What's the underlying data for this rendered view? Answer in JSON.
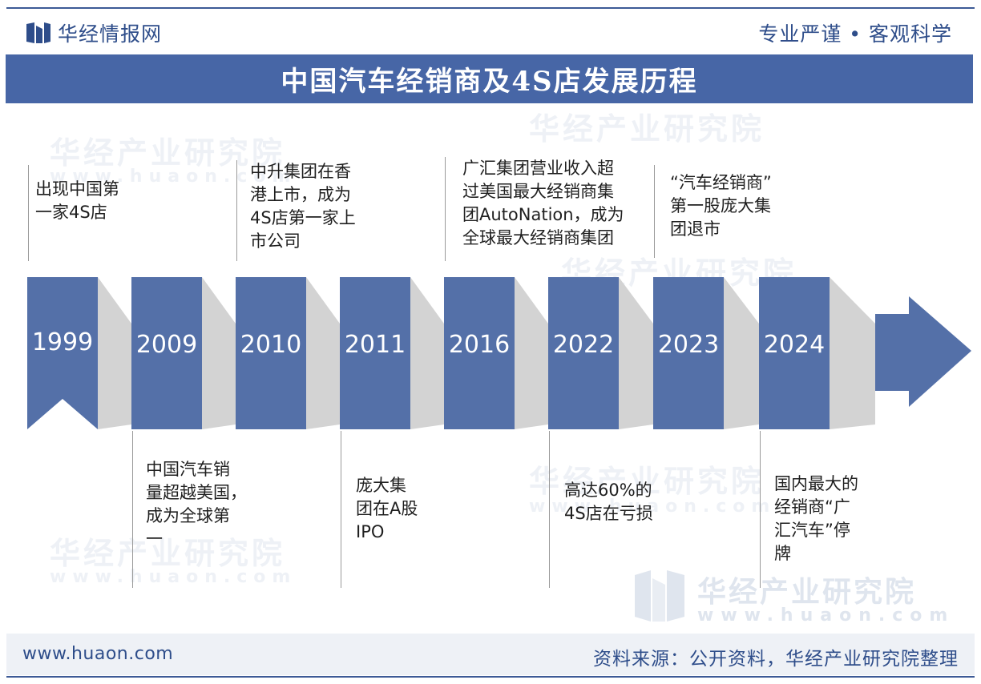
{
  "header": {
    "brand": "华经情报网",
    "slogan": "专业严谨 • 客观科学"
  },
  "title": "中国汽车经销商及4S店发展历程",
  "watermark": {
    "text": "华经产业研究院",
    "url": "www.huaon.com"
  },
  "timeline": [
    {
      "year": "1999",
      "event": "出现中国第\n一家4S店",
      "position": "top"
    },
    {
      "year": "2009",
      "event": "中国汽车销\n量超越美国，\n成为全球第\n一",
      "position": "bottom"
    },
    {
      "year": "2010",
      "event": "中升集团在香\n港上市，成为\n4S店第一家上\n市公司",
      "position": "top"
    },
    {
      "year": "2011",
      "event": "庞大集\n团在A股\nIPO",
      "position": "bottom"
    },
    {
      "year": "2016",
      "event": "广汇集团营业收入超\n过美国最大经销商集\n团AutoNation，成为\n全球最大经销商集团",
      "position": "top"
    },
    {
      "year": "2022",
      "event": "高达60%的\n4S店在亏损",
      "position": "bottom"
    },
    {
      "year": "2023",
      "event": "“汽车经销商”\n第一股庞大集\n团退市",
      "position": "top"
    },
    {
      "year": "2024",
      "event": "国内最大的\n经销商“广\n汇汽车”停\n牌",
      "position": "bottom"
    }
  ],
  "colors": {
    "primary": "#4766a6",
    "box": "#5470a8",
    "connector": "#d3d3d3",
    "accent": "#2e4d8a"
  },
  "footer": {
    "url": "www.huaon.com",
    "source": "资料来源：公开资料，华经产业研究院整理"
  }
}
